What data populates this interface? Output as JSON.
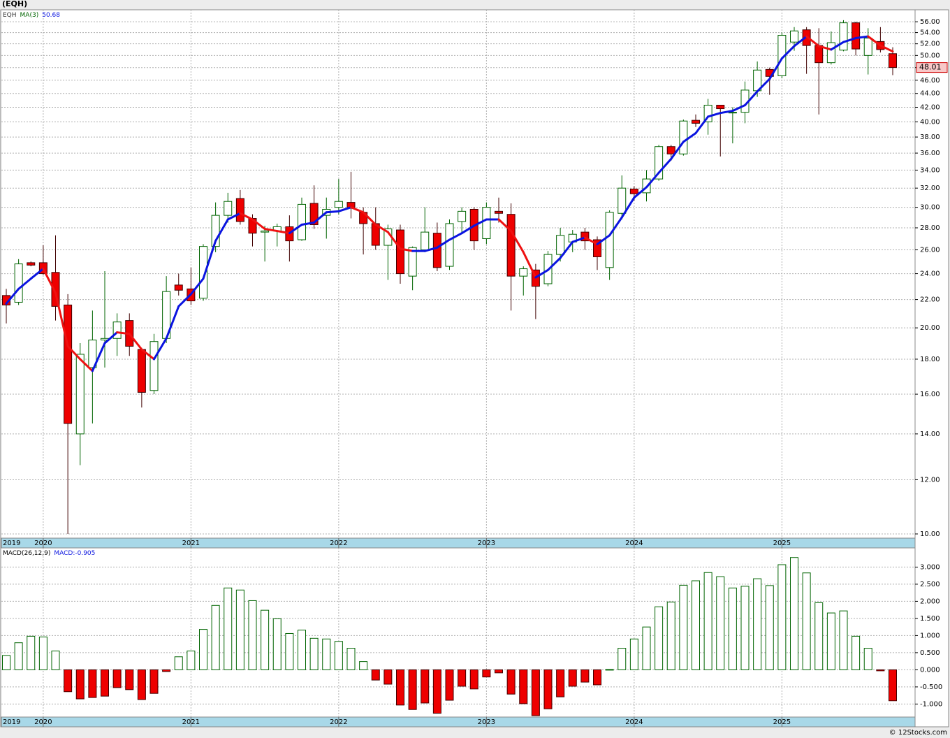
{
  "chart_data": [
    {
      "type": "candlestick",
      "title": "(EQH)",
      "symbol": "EQH",
      "categories": [
        "2019",
        null,
        null,
        "2020",
        null,
        null,
        null,
        null,
        null,
        null,
        null,
        null,
        null,
        null,
        null,
        "2021",
        null,
        null,
        null,
        null,
        null,
        null,
        null,
        null,
        null,
        null,
        null,
        "2022",
        null,
        null,
        null,
        null,
        null,
        null,
        null,
        null,
        null,
        null,
        null,
        "2023",
        null,
        null,
        null,
        null,
        null,
        null,
        null,
        null,
        null,
        null,
        null,
        "2024",
        null,
        null,
        null,
        null,
        null,
        null,
        null,
        null,
        null,
        null,
        null,
        "2025",
        null,
        null,
        null,
        null,
        null,
        null,
        null,
        null,
        null
      ],
      "open": [
        22.3,
        21.8,
        24.9,
        24.9,
        24.1,
        21.6,
        14.0,
        17.5,
        19.2,
        19.3,
        20.5,
        18.6,
        16.2,
        19.3,
        23.1,
        22.8,
        22.1,
        26.3,
        29.2,
        30.9,
        28.9,
        27.6,
        27.7,
        28.1,
        26.9,
        30.4,
        29.2,
        30.0,
        30.5,
        29.5,
        28.4,
        26.4,
        27.8,
        23.8,
        26.0,
        27.5,
        24.6,
        28.6,
        29.8,
        27.0,
        29.6,
        29.3,
        23.8,
        24.3,
        23.2,
        25.6,
        26.7,
        27.6,
        26.9,
        24.5,
        29.4,
        31.9,
        31.5,
        33.0,
        36.8,
        35.9,
        40.2,
        40.0,
        42.3,
        41.2,
        41.3,
        44.4,
        47.7,
        46.7,
        52.3,
        54.5,
        51.7,
        48.8,
        50.9,
        55.8,
        50.0,
        52.4,
        50.3
      ],
      "high": [
        22.8,
        25.2,
        25.0,
        26.4,
        27.3,
        22.4,
        19.0,
        21.2,
        24.2,
        21.0,
        21.0,
        18.7,
        19.6,
        23.8,
        24.0,
        24.5,
        26.5,
        30.5,
        31.5,
        31.8,
        29.3,
        28.2,
        28.4,
        29.2,
        31.0,
        32.3,
        31.0,
        33.0,
        33.8,
        30.0,
        30.0,
        28.3,
        28.3,
        26.3,
        30.0,
        28.5,
        28.8,
        30.0,
        30.0,
        30.5,
        31.0,
        30.4,
        24.6,
        24.8,
        25.9,
        28.0,
        27.8,
        28.0,
        27.2,
        29.7,
        33.4,
        32.2,
        34.0,
        37.0,
        37.0,
        40.3,
        41.0,
        43.2,
        42.3,
        42.0,
        45.8,
        49.0,
        48.0,
        54.0,
        55.0,
        55.0,
        54.8,
        54.2,
        56.3,
        56.0,
        54.8,
        55.0,
        51.4
      ],
      "low": [
        20.3,
        21.6,
        24.6,
        23.9,
        20.5,
        10.0,
        12.6,
        14.5,
        17.5,
        18.2,
        18.2,
        15.3,
        16.0,
        19.0,
        22.3,
        21.6,
        21.9,
        25.8,
        28.5,
        28.3,
        26.3,
        25.0,
        26.3,
        25.0,
        26.8,
        27.9,
        27.0,
        29.3,
        28.9,
        25.6,
        26.0,
        23.5,
        23.2,
        22.7,
        25.8,
        24.2,
        24.3,
        27.5,
        26.0,
        26.5,
        28.5,
        21.2,
        22.3,
        20.6,
        23.0,
        25.0,
        25.8,
        26.0,
        24.3,
        23.5,
        28.8,
        30.7,
        30.6,
        32.8,
        35.1,
        35.7,
        39.3,
        38.3,
        35.6,
        37.2,
        39.8,
        43.5,
        43.8,
        46.3,
        50.8,
        47.0,
        41.0,
        48.5,
        50.7,
        50.0,
        46.9,
        50.5,
        46.8
      ],
      "close": [
        21.6,
        24.8,
        24.7,
        24.0,
        21.5,
        14.5,
        18.3,
        19.2,
        19.3,
        20.4,
        18.8,
        16.1,
        19.1,
        22.6,
        22.7,
        21.9,
        26.3,
        29.2,
        30.6,
        28.6,
        27.5,
        27.7,
        28.1,
        26.8,
        30.3,
        28.3,
        29.8,
        30.6,
        29.9,
        28.4,
        26.4,
        27.9,
        24.0,
        26.2,
        27.6,
        24.5,
        28.4,
        29.6,
        26.8,
        30.0,
        29.4,
        23.8,
        24.4,
        23.0,
        25.6,
        27.3,
        27.4,
        26.8,
        25.4,
        29.5,
        32.0,
        31.4,
        33.0,
        36.8,
        35.9,
        40.1,
        39.8,
        42.3,
        41.8,
        41.3,
        44.5,
        47.6,
        46.6,
        53.5,
        54.3,
        51.7,
        48.8,
        52.2,
        55.8,
        51.1,
        53.0,
        51.0,
        48.01
      ],
      "up_color": "#ffffff",
      "up_stroke": "#006400",
      "down_color": "#ee0000",
      "down_stroke": "#400000",
      "ma": {
        "name": "MA(3)",
        "up_color": "#0a14e0",
        "down_color": "#ee1111",
        "values": [
          21.7,
          22.8,
          23.6,
          24.4,
          22.5,
          18.8,
          18.0,
          17.3,
          19.0,
          19.7,
          19.6,
          18.6,
          18.0,
          19.3,
          21.5,
          22.4,
          23.6,
          26.8,
          28.8,
          29.4,
          28.8,
          27.9,
          27.7,
          27.5,
          28.3,
          28.5,
          29.5,
          29.6,
          30.0,
          29.5,
          28.3,
          27.6,
          26.1,
          25.9,
          25.9,
          26.2,
          26.9,
          27.5,
          28.2,
          28.8,
          28.8,
          27.7,
          25.8,
          23.7,
          24.3,
          25.3,
          26.7,
          27.1,
          26.5,
          27.3,
          29.0,
          31.0,
          32.1,
          33.7,
          35.3,
          37.4,
          38.5,
          40.7,
          41.2,
          41.5,
          42.3,
          44.3,
          46.2,
          49.5,
          51.6,
          53.3,
          51.6,
          51.0,
          52.3,
          53.0,
          53.3,
          51.7,
          50.68
        ]
      },
      "log_scale": true,
      "grid": true,
      "ylim": [
        9.86,
        58.3
      ],
      "yticks": [
        {
          "value": 10,
          "label": "10.00"
        },
        {
          "value": 12,
          "label": "12.00"
        },
        {
          "value": 14,
          "label": "14.00"
        },
        {
          "value": 16,
          "label": "16.00"
        },
        {
          "value": 18,
          "label": "18.00"
        },
        {
          "value": 20,
          "label": "20.00"
        },
        {
          "value": 22,
          "label": "22.00"
        },
        {
          "value": 24,
          "label": "24.00"
        },
        {
          "value": 26,
          "label": "26.00"
        },
        {
          "value": 28,
          "label": "28.00"
        },
        {
          "value": 30,
          "label": "30.00"
        },
        {
          "value": 32,
          "label": "32.00"
        },
        {
          "value": 34,
          "label": "34.00"
        },
        {
          "value": 36,
          "label": "36.00"
        },
        {
          "value": 38,
          "label": "38.00"
        },
        {
          "value": 40,
          "label": "40.00"
        },
        {
          "value": 42,
          "label": "42.00"
        },
        {
          "value": 44,
          "label": "44.00"
        },
        {
          "value": 46,
          "label": "46.00"
        },
        {
          "value": 48,
          "label": "48.00"
        },
        {
          "value": 50,
          "label": "50.00"
        },
        {
          "value": 52,
          "label": "52.00"
        },
        {
          "value": 54,
          "label": "54.00"
        },
        {
          "value": 56,
          "label": "56.00"
        }
      ]
    },
    {
      "type": "bar",
      "title": "MACD(26,12,9)",
      "legend": "MACD:-0.905",
      "categories": [
        "2019",
        null,
        null,
        "2020",
        null,
        null,
        null,
        null,
        null,
        null,
        null,
        null,
        null,
        null,
        null,
        "2021",
        null,
        null,
        null,
        null,
        null,
        null,
        null,
        null,
        null,
        null,
        null,
        "2022",
        null,
        null,
        null,
        null,
        null,
        null,
        null,
        null,
        null,
        null,
        null,
        "2023",
        null,
        null,
        null,
        null,
        null,
        null,
        null,
        null,
        null,
        null,
        null,
        "2024",
        null,
        null,
        null,
        null,
        null,
        null,
        null,
        null,
        null,
        null,
        null,
        "2025",
        null,
        null,
        null,
        null,
        null,
        null,
        null,
        null,
        null
      ],
      "values": [
        0.42,
        0.79,
        0.98,
        0.96,
        0.55,
        -0.64,
        -0.85,
        -0.81,
        -0.77,
        -0.52,
        -0.58,
        -0.87,
        -0.69,
        -0.05,
        0.38,
        0.55,
        1.18,
        1.88,
        2.39,
        2.33,
        2.02,
        1.74,
        1.49,
        1.06,
        1.16,
        0.92,
        0.9,
        0.83,
        0.63,
        0.24,
        -0.3,
        -0.42,
        -1.03,
        -1.16,
        -0.97,
        -1.27,
        -0.89,
        -0.48,
        -0.56,
        -0.21,
        -0.09,
        -0.71,
        -0.99,
        -1.34,
        -1.14,
        -0.79,
        -0.48,
        -0.36,
        -0.44,
        0.01,
        0.63,
        0.9,
        1.25,
        1.84,
        1.98,
        2.47,
        2.6,
        2.84,
        2.72,
        2.39,
        2.44,
        2.66,
        2.46,
        3.07,
        3.28,
        2.83,
        1.96,
        1.66,
        1.72,
        0.98,
        0.63,
        -0.03,
        -0.905
      ],
      "up_color": "#ffffff",
      "up_stroke": "#006400",
      "down_color": "#ee0000",
      "down_stroke": "#400000",
      "grid": true,
      "ylim": [
        -1.38,
        3.56
      ],
      "yticks": [
        {
          "value": -1,
          "label": "-1.000"
        },
        {
          "value": -0.5,
          "label": "-0.500"
        },
        {
          "value": 0,
          "label": "0.000"
        },
        {
          "value": 0.5,
          "label": "0.500"
        },
        {
          "value": 1,
          "label": "1.000"
        },
        {
          "value": 1.5,
          "label": "1.500"
        },
        {
          "value": 2,
          "label": "2.000"
        },
        {
          "value": 2.5,
          "label": "2.500"
        },
        {
          "value": 3,
          "label": "3.000"
        }
      ]
    }
  ],
  "footer": "© 12Stocks.com"
}
